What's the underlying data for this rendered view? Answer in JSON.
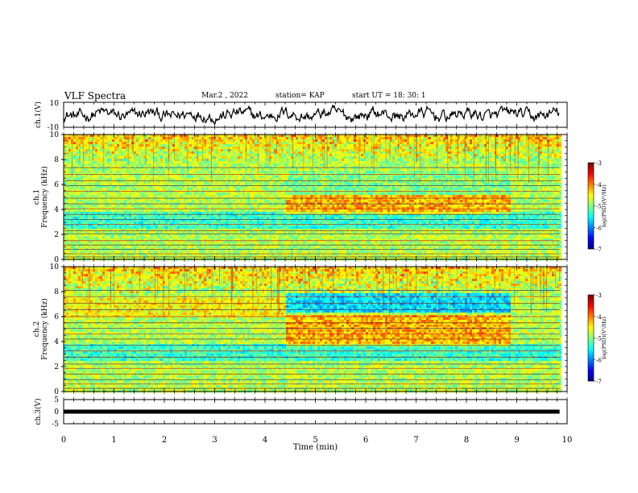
{
  "header": {
    "title": "VLF Spectra",
    "date": "Mar.2  , 2022",
    "station": "station= KAP",
    "start": "start  UT  =   18: 30: 1"
  },
  "chart_data": [
    {
      "type": "line",
      "name": "ch1-waveform",
      "ylabel": "ch.1(V)",
      "ylim": [
        -10,
        10
      ],
      "yticks": [
        "10",
        "-10"
      ],
      "xlim": [
        0,
        10
      ],
      "x_end": 9.85,
      "level": 0,
      "amplitude": 4.5
    },
    {
      "type": "heatmap",
      "name": "ch1-spectrogram",
      "ylabel": "ch.1\nFrequency (kHz)",
      "ylim": [
        0,
        10
      ],
      "yticks": [
        "0",
        "2",
        "4",
        "6",
        "8",
        "10"
      ],
      "xlim": [
        0,
        10
      ],
      "x_end": 9.85,
      "colorbar": {
        "label": "log(PSD)(V²/Hz)",
        "range": [
          -7,
          -3
        ],
        "ticks": [
          "-3",
          "-4",
          "-5",
          "-6",
          "-7"
        ]
      },
      "segments": [
        {
          "from": 0,
          "to": 4.37,
          "state": "quiet"
        },
        {
          "from": 4.37,
          "to": 5.8,
          "state": "active"
        },
        {
          "from": 5.8,
          "to": 8.85,
          "state": "active"
        },
        {
          "from": 8.85,
          "to": 9.85,
          "state": "quiet"
        }
      ]
    },
    {
      "type": "heatmap",
      "name": "ch2-spectrogram",
      "ylabel": "ch.2\nFrequency (kHz)",
      "ylim": [
        0,
        10
      ],
      "yticks": [
        "0",
        "2",
        "4",
        "6",
        "8",
        "10"
      ],
      "xlim": [
        0,
        10
      ],
      "x_end": 9.85,
      "colorbar": {
        "label": "log(PSD)(V²/Hz)",
        "range": [
          -7,
          -3
        ],
        "ticks": [
          "-3",
          "-4",
          "-5",
          "-6",
          "-7"
        ]
      },
      "segments": [
        {
          "from": 0,
          "to": 4.37,
          "state": "quiet"
        },
        {
          "from": 4.37,
          "to": 5.8,
          "state": "active"
        },
        {
          "from": 5.8,
          "to": 8.85,
          "state": "active"
        },
        {
          "from": 8.85,
          "to": 9.85,
          "state": "quiet"
        }
      ]
    },
    {
      "type": "line",
      "name": "ch3-signal",
      "ylabel": "ch.3(V)",
      "ylim": [
        -5,
        5
      ],
      "yticks": [
        "5",
        "0",
        "-5"
      ],
      "xlim": [
        0,
        10
      ],
      "x_end": 9.85,
      "level": 0
    }
  ],
  "xaxis": {
    "label": "Time  (min)",
    "ticks": [
      "0",
      "1",
      "2",
      "3",
      "4",
      "5",
      "6",
      "7",
      "8",
      "9",
      "10"
    ]
  }
}
